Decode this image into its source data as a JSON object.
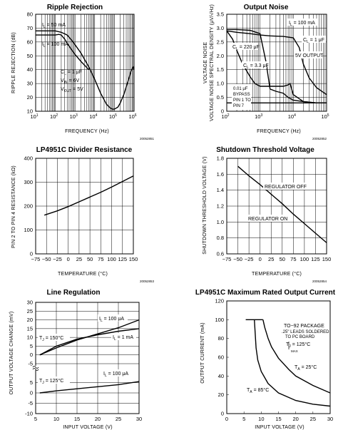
{
  "chart_data": [
    {
      "type": "line",
      "title": "Ripple Rejection",
      "xlabel": "FREQUENCY (Hz)",
      "ylabel": "RIPPLE REJECTION (dB)",
      "xscale": "log",
      "xlim": [
        10,
        1000000
      ],
      "ylim": [
        10,
        80
      ],
      "grid": true,
      "figure_code": "20052851",
      "x_ticks": [
        {
          "base": "10",
          "exp": "1"
        },
        {
          "base": "10",
          "exp": "2"
        },
        {
          "base": "10",
          "exp": "3"
        },
        {
          "base": "10",
          "exp": "4"
        },
        {
          "base": "10",
          "exp": "5"
        },
        {
          "base": "10",
          "exp": "6"
        }
      ],
      "y_ticks": [
        "10",
        "20",
        "30",
        "40",
        "50",
        "60",
        "70",
        "80"
      ],
      "series": [
        {
          "name": "I_L = 50 mA",
          "x": [
            10,
            30,
            100,
            200,
            400,
            700,
            1000,
            2000,
            5000,
            10000,
            20000,
            40000,
            60000,
            80000,
            100000,
            150000,
            200000,
            300000,
            500000,
            700000,
            900000,
            1000000
          ],
          "y": [
            68,
            68,
            68,
            67,
            65,
            61,
            58,
            52,
            42,
            33,
            23,
            15,
            12.5,
            11.5,
            11.5,
            13,
            16,
            22,
            32,
            39,
            42,
            40
          ]
        },
        {
          "name": "I_L = 100 mA",
          "x": [
            10,
            30,
            100,
            150,
            200,
            300,
            500,
            700,
            1000,
            2000,
            5000
          ],
          "y": [
            65,
            65,
            65,
            65.5,
            65,
            62,
            57,
            54,
            51,
            46,
            40
          ]
        }
      ],
      "annotations": [
        {
          "sub": "L",
          "pre": "I",
          "text": " = 50 mA"
        },
        {
          "sub": "L",
          "pre": "I",
          "text": " = 100 mA"
        },
        {
          "sub": "L",
          "pre": "C",
          "text": " = 1 μF"
        },
        {
          "sub": "IN",
          "pre": "V",
          "text": " = 6V"
        },
        {
          "sub": "OUT",
          "pre": "V",
          "text": " = 5V"
        }
      ]
    },
    {
      "type": "line",
      "title": "Output Noise",
      "xlabel": "FREQUENCY (Hz)",
      "ylabel": "VOLTAGE NOISE SPECTRAL DENSITY (μV/√Hz)",
      "xscale": "log",
      "xlim": [
        100,
        100000
      ],
      "ylim": [
        0,
        3.5
      ],
      "grid": true,
      "figure_code": "20052852",
      "x_ticks": [
        {
          "base": "10",
          "exp": "2"
        },
        {
          "base": "10",
          "exp": "3"
        },
        {
          "base": "10",
          "exp": "4"
        },
        {
          "base": "10",
          "exp": "5"
        }
      ],
      "y_ticks": [
        "0",
        "0.5",
        "1.0",
        "1.5",
        "2.0",
        "2.5",
        "3.0",
        "3.5"
      ],
      "series": [
        {
          "name": "C_L = 1 μF, 5V OUTPUT",
          "x": [
            100,
            200,
            500,
            1000,
            2000,
            5000,
            10000,
            15000,
            20000,
            30000,
            50000,
            100000
          ],
          "y": [
            2.9,
            2.85,
            2.8,
            2.75,
            2.72,
            2.7,
            2.65,
            2.3,
            1.7,
            1.2,
            0.85,
            0.6
          ]
        },
        {
          "name": "C_L = 220 μF",
          "x": [
            100,
            200,
            500,
            1000,
            1500,
            2000,
            3000,
            5000,
            7000,
            10000,
            20000,
            50000,
            100000
          ],
          "y": [
            2.95,
            2.95,
            2.92,
            2.8,
            1.8,
            0.8,
            0.72,
            0.65,
            0.5,
            0.4,
            0.35,
            0.3,
            0.3
          ]
        },
        {
          "name": "C_L = 3.3 μF",
          "x": [
            100,
            150,
            200,
            300,
            500,
            700,
            1000,
            2000,
            5000,
            7000,
            8000,
            10000,
            20000,
            50000,
            100000
          ],
          "y": [
            2.9,
            2.6,
            2.2,
            1.7,
            1.25,
            1.0,
            0.9,
            0.9,
            0.9,
            0.95,
            1.0,
            0.6,
            0.35,
            0.3,
            0.3
          ]
        },
        {
          "name": "0.01 μF BYPASS PIN 1 TO PIN 7",
          "x": [
            100,
            200,
            500,
            1000,
            2000,
            5000,
            10000,
            100000
          ],
          "y": [
            0.3,
            0.3,
            0.3,
            0.3,
            0.3,
            0.3,
            0.3,
            0.3
          ]
        }
      ],
      "annotations": [
        {
          "pre": "I",
          "sub": "L",
          "text": " = 100 mA"
        },
        {
          "pre": "C",
          "sub": "L",
          "text": " = 1 μF"
        },
        {
          "pre": "C",
          "sub": "L",
          "text": " = 220 μF"
        },
        {
          "text": "5V OUTPUT"
        },
        {
          "pre": "C",
          "sub": "L",
          "text": " = 3.3 μF"
        },
        {
          "text": "0.01 μF"
        },
        {
          "text": "BYPASS"
        },
        {
          "text": "PIN 1 TO"
        },
        {
          "text": "PIN 7"
        }
      ]
    },
    {
      "type": "line",
      "title": "LP4951C Divider Resistance",
      "xlabel": "TEMPERATURE (°C)",
      "ylabel": "PIN 2 TO PIN 4 RESISTANCE (kΩ)",
      "xlim": [
        -75,
        150
      ],
      "ylim": [
        0,
        400
      ],
      "grid": true,
      "figure_code": "20052853",
      "x_ticks": [
        "−75",
        "−50",
        "−25",
        "0",
        "25",
        "50",
        "75",
        "100",
        "125",
        "150"
      ],
      "y_ticks": [
        "0",
        "100",
        "200",
        "300",
        "400"
      ],
      "series": [
        {
          "name": "",
          "x": [
            -55,
            -25,
            0,
            25,
            50,
            75,
            100,
            125,
            150
          ],
          "y": [
            162,
            180,
            198,
            218,
            238,
            258,
            280,
            303,
            326
          ]
        }
      ]
    },
    {
      "type": "line",
      "title": "Shutdown Threshold Voltage",
      "xlabel": "TEMPERATURE (°C)",
      "ylabel": "SHUTDOWN THRESHOLD VOLTAGE (V)",
      "xlim": [
        -75,
        150
      ],
      "ylim": [
        0.6,
        1.8
      ],
      "grid": true,
      "figure_code": "20052854",
      "x_ticks": [
        "−75",
        "−50",
        "−25",
        "0",
        "25",
        "50",
        "75",
        "100",
        "125",
        "150"
      ],
      "y_ticks": [
        "0.6",
        "0.8",
        "1.0",
        "1.2",
        "1.4",
        "1.6",
        "1.8"
      ],
      "series": [
        {
          "name": "",
          "x": [
            -50,
            -25,
            0,
            25,
            50,
            75,
            100,
            125,
            150
          ],
          "y": [
            1.7,
            1.58,
            1.47,
            1.35,
            1.23,
            1.1,
            0.98,
            0.86,
            0.74
          ]
        }
      ],
      "annotations": [
        {
          "text": "REGULATOR OFF"
        },
        {
          "text": "REGULATOR ON"
        }
      ]
    },
    {
      "type": "line",
      "title": "Line Regulation",
      "xlabel": "INPUT VOLTAGE (V)",
      "ylabel": "OUTPUT VOLTAGE CHANGE (mV)",
      "xlim": [
        5,
        30
      ],
      "axis_break": true,
      "ylim_upper": [
        -5,
        30
      ],
      "ylim_lower": [
        -10,
        10
      ],
      "grid": true,
      "x_ticks": [
        "5",
        "10",
        "15",
        "20",
        "25",
        "30"
      ],
      "y_ticks_upper": [
        "30",
        "25",
        "20",
        "15",
        "10",
        "5",
        "0",
        "-5"
      ],
      "y_ticks_lower": [
        "5",
        "0",
        "-5",
        "-10"
      ],
      "series": [
        {
          "name": "I_L = 100 μA (T_J = 150°C)",
          "panel": "upper",
          "x": [
            6,
            10,
            15,
            20,
            25,
            30
          ],
          "y": [
            0,
            4,
            8.5,
            12,
            15.5,
            20
          ]
        },
        {
          "name": "I_L = 1 mA (T_J = 150°C)",
          "panel": "upper",
          "x": [
            6,
            10,
            15,
            20,
            25,
            30
          ],
          "y": [
            0,
            5,
            9,
            11.5,
            13.5,
            15
          ]
        },
        {
          "name": "I_L = 100 μA (T_J = 125°C)",
          "panel": "lower",
          "x": [
            6,
            10,
            15,
            20,
            25,
            30
          ],
          "y": [
            0,
            1,
            2,
            3,
            4,
            5.5
          ]
        }
      ],
      "annotations": [
        {
          "pre": "I",
          "sub": "L",
          "text": " = 100 μA"
        },
        {
          "pre": "I",
          "sub": "L",
          "text": " = 1 mA"
        },
        {
          "pre": "T",
          "sub": "J",
          "text": " = 150°C"
        },
        {
          "pre": "T",
          "sub": "J",
          "text": " = 125°C"
        },
        {
          "pre": "I",
          "sub": "L",
          "text": " = 100 μA"
        }
      ]
    },
    {
      "type": "line",
      "title": "LP4951C Maximum Rated Output Current",
      "xlabel": "INPUT VOLTAGE (V)",
      "ylabel": "OUTPUT CURRENT (mA)",
      "xlim": [
        0,
        30
      ],
      "ylim": [
        0,
        120
      ],
      "grid": false,
      "x_ticks": [
        "0",
        "5",
        "10",
        "15",
        "20",
        "25",
        "30"
      ],
      "y_ticks": [
        "0",
        "20",
        "40",
        "60",
        "80",
        "100",
        "120"
      ],
      "series": [
        {
          "name": "T_J MAX = 125°C",
          "x": [
            10.5,
            11,
            12,
            13,
            15,
            18,
            20,
            25,
            30
          ],
          "y": [
            100,
            92,
            80,
            71,
            59,
            47,
            40,
            30,
            22
          ]
        },
        {
          "name": "T_A = 25°C",
          "x": [
            5.5,
            10.5
          ],
          "y": [
            100,
            100
          ]
        },
        {
          "name": "T_A = 85°C",
          "x": [
            8,
            8.5,
            9,
            10,
            12,
            15,
            20,
            25,
            30
          ],
          "y": [
            100,
            70,
            57,
            45,
            32,
            22,
            14,
            10,
            8
          ]
        }
      ],
      "annotations": [
        {
          "text": "TO−92 PACKAGE"
        },
        {
          "text": ".25\" LEADS SOLDERED"
        },
        {
          "text": "TO PC BOARD"
        },
        {
          "pre": "T",
          "sub": "J",
          "text": " = 125°C",
          "sub2": "MAX"
        },
        {
          "pre": "T",
          "sub": "A",
          "text": " = 25°C"
        },
        {
          "pre": "T",
          "sub": "A",
          "text": " = 85°C"
        }
      ]
    }
  ]
}
